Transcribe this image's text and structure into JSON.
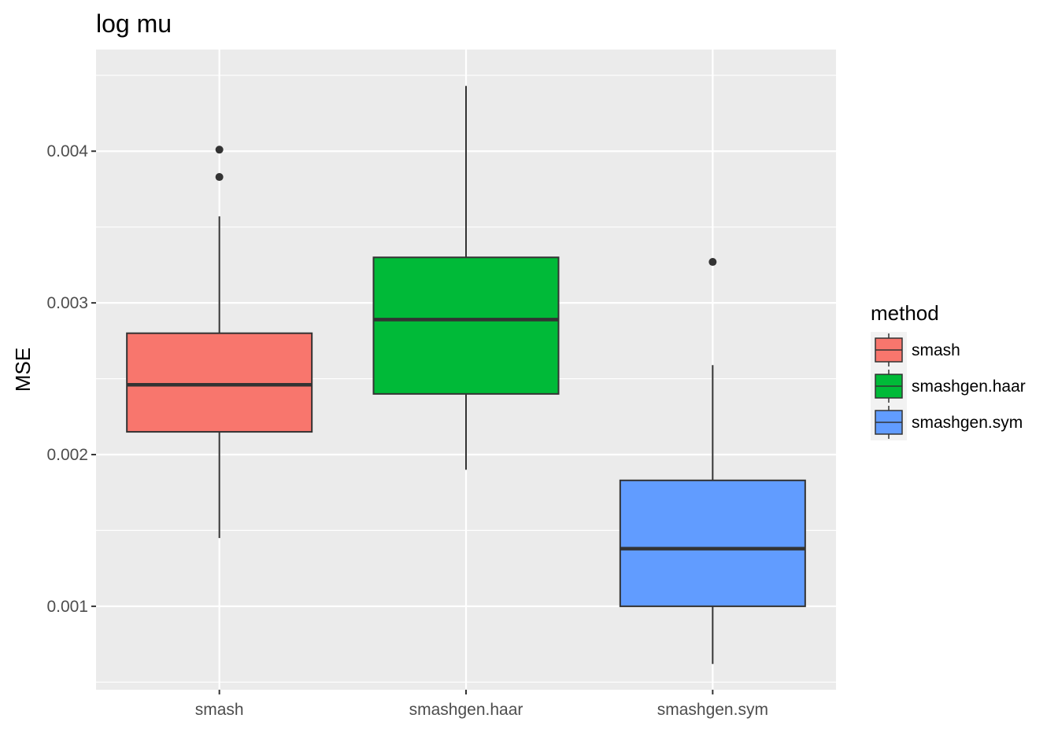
{
  "chart_data": {
    "type": "boxplot",
    "title": "log mu",
    "xlabel": "",
    "ylabel": "MSE",
    "ylim": [
      0.00045,
      0.00467
    ],
    "y_ticks": [
      {
        "value": 0.001,
        "label": "0.001"
      },
      {
        "value": 0.002,
        "label": "0.002"
      },
      {
        "value": 0.003,
        "label": "0.003"
      },
      {
        "value": 0.004,
        "label": "0.004"
      }
    ],
    "y_minor_ticks": [
      0.0005,
      0.0015,
      0.0025,
      0.0035,
      0.0045
    ],
    "categories": [
      "smash",
      "smashgen.haar",
      "smashgen.sym"
    ],
    "series": [
      {
        "name": "smash",
        "color": "#F8766D",
        "lower_whisker": 0.00145,
        "q1": 0.00215,
        "median": 0.00246,
        "q3": 0.0028,
        "upper_whisker": 0.00357,
        "outliers": [
          0.00383,
          0.00401
        ]
      },
      {
        "name": "smashgen.haar",
        "color": "#00BA38",
        "lower_whisker": 0.0019,
        "q1": 0.0024,
        "median": 0.00289,
        "q3": 0.0033,
        "upper_whisker": 0.00443,
        "outliers": []
      },
      {
        "name": "smashgen.sym",
        "color": "#619CFF",
        "lower_whisker": 0.00062,
        "q1": 0.001,
        "median": 0.00138,
        "q3": 0.00183,
        "upper_whisker": 0.00259,
        "outliers": [
          0.00327
        ]
      }
    ],
    "grid": true,
    "legend": {
      "title": "method",
      "position": "right"
    }
  }
}
